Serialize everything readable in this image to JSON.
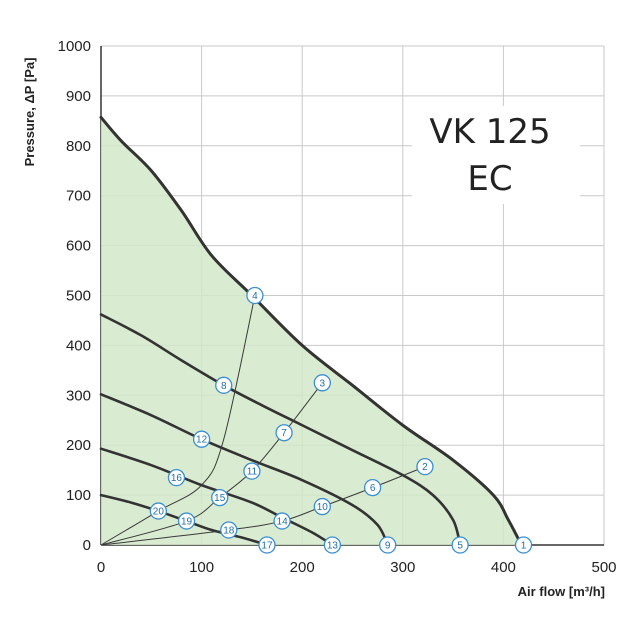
{
  "chart_data": {
    "type": "line",
    "title_lines": [
      "VK 125",
      "EC"
    ],
    "xlabel": "Air flow [m³/h]",
    "ylabel": "Pressure, ΔP [Pa]",
    "xlim": [
      0,
      500
    ],
    "ylim": [
      0,
      1000
    ],
    "xticks": [
      0,
      100,
      200,
      300,
      400,
      500
    ],
    "yticks": [
      0,
      100,
      200,
      300,
      400,
      500,
      600,
      700,
      800,
      900,
      1000
    ],
    "grid": true,
    "area_fill": "#d2e8c8",
    "curve_color": "#333333",
    "series": [
      {
        "values": [
          [
            0,
            857
          ],
          [
            20,
            810
          ],
          [
            50,
            750
          ],
          [
            80,
            670
          ],
          [
            110,
            580
          ],
          [
            150,
            500
          ],
          [
            200,
            400
          ],
          [
            250,
            320
          ],
          [
            300,
            240
          ],
          [
            350,
            170
          ],
          [
            390,
            100
          ],
          [
            405,
            50
          ],
          [
            418,
            0
          ]
        ]
      },
      {
        "values": [
          [
            0,
            462
          ],
          [
            40,
            420
          ],
          [
            80,
            370
          ],
          [
            122,
            320
          ],
          [
            160,
            280
          ],
          [
            200,
            240
          ],
          [
            250,
            190
          ],
          [
            300,
            140
          ],
          [
            330,
            100
          ],
          [
            350,
            50
          ],
          [
            357,
            0
          ]
        ]
      },
      {
        "values": [
          [
            0,
            302
          ],
          [
            50,
            260
          ],
          [
            100,
            212
          ],
          [
            150,
            170
          ],
          [
            200,
            130
          ],
          [
            250,
            80
          ],
          [
            275,
            40
          ],
          [
            285,
            0
          ]
        ]
      },
      {
        "values": [
          [
            0,
            193
          ],
          [
            50,
            160
          ],
          [
            100,
            120
          ],
          [
            150,
            85
          ],
          [
            180,
            55
          ],
          [
            210,
            25
          ],
          [
            230,
            0
          ]
        ]
      },
      {
        "values": [
          [
            0,
            100
          ],
          [
            30,
            85
          ],
          [
            57,
            68
          ],
          [
            85,
            48
          ],
          [
            110,
            30
          ],
          [
            140,
            15
          ],
          [
            165,
            0
          ]
        ]
      }
    ],
    "system_lines": [
      {
        "values": [
          [
            0,
            0
          ],
          [
            57,
            68
          ],
          [
            100,
            120
          ],
          [
            122,
            212
          ],
          [
            153,
            500
          ]
        ]
      },
      {
        "values": [
          [
            0,
            0
          ],
          [
            85,
            48
          ],
          [
            118,
            95
          ],
          [
            150,
            148
          ],
          [
            182,
            225
          ],
          [
            220,
            325
          ]
        ]
      },
      {
        "values": [
          [
            0,
            0
          ],
          [
            127,
            30
          ],
          [
            180,
            48
          ],
          [
            220,
            77
          ],
          [
            270,
            115
          ],
          [
            322,
            157
          ]
        ]
      }
    ],
    "markers": [
      {
        "label": "1",
        "x": 420,
        "y": 0
      },
      {
        "label": "2",
        "x": 322,
        "y": 157
      },
      {
        "label": "3",
        "x": 220,
        "y": 325
      },
      {
        "label": "4",
        "x": 153,
        "y": 500
      },
      {
        "label": "5",
        "x": 357,
        "y": 0
      },
      {
        "label": "6",
        "x": 270,
        "y": 115
      },
      {
        "label": "7",
        "x": 182,
        "y": 225
      },
      {
        "label": "8",
        "x": 122,
        "y": 320
      },
      {
        "label": "9",
        "x": 285,
        "y": 0
      },
      {
        "label": "10",
        "x": 220,
        "y": 77
      },
      {
        "label": "11",
        "x": 150,
        "y": 148
      },
      {
        "label": "12",
        "x": 100,
        "y": 212
      },
      {
        "label": "13",
        "x": 230,
        "y": 0
      },
      {
        "label": "14",
        "x": 180,
        "y": 48
      },
      {
        "label": "15",
        "x": 118,
        "y": 95
      },
      {
        "label": "16",
        "x": 75,
        "y": 135
      },
      {
        "label": "17",
        "x": 165,
        "y": 0
      },
      {
        "label": "18",
        "x": 127,
        "y": 30
      },
      {
        "label": "19",
        "x": 85,
        "y": 48
      },
      {
        "label": "20",
        "x": 57,
        "y": 68
      }
    ]
  }
}
